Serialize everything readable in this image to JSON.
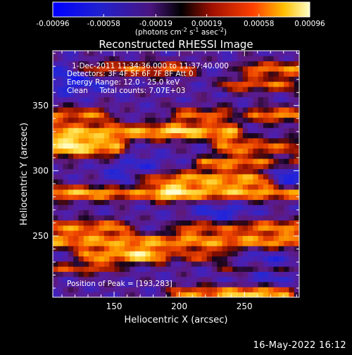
{
  "chart_data": {
    "type": "heatmap",
    "title": "Reconstructed RHESSI Image",
    "xlabel": "Heliocentric X (arcsec)",
    "ylabel": "Heliocentric Y (arcsec)",
    "xlim": [
      103,
      292
    ],
    "ylim": [
      203,
      392
    ],
    "x_ticks": [
      150,
      200,
      250
    ],
    "y_ticks": [
      250,
      300,
      350
    ],
    "x_tick_labels": [
      "150",
      "200",
      "250"
    ],
    "y_tick_labels": [
      "250",
      "300",
      "350"
    ],
    "colorbar": {
      "range": [
        -0.00096,
        0.00096
      ],
      "tick_values": [
        -0.00096,
        -0.00058,
        -0.00019,
        0.00019,
        0.00058,
        0.00096
      ],
      "tick_labels": [
        "-0.00096",
        "-0.00058",
        "-0.00019",
        "0.00019",
        "0.00058",
        "0.00096"
      ],
      "units_prefix": "(photons cm",
      "units_exp1": "-2",
      "units_mid": " s",
      "units_exp2": "-1",
      "units_mid2": " asec",
      "units_exp3": "-2",
      "units_suffix": ")"
    },
    "annotations": {
      "time_range": "1-Dec-2011 11:34:36.000 to 11:37:40.000",
      "detectors": "Detectors: 3F 4F 5F 6F 7F 8F Att 0",
      "energy": "Energy Range: 12.0 - 25.0 keV",
      "method": "Clean     Total counts: 7.07E+03",
      "peak": "Position of Peak = [193,283]"
    },
    "image_grid": {
      "nx": 48,
      "ny": 48,
      "bright_bands": [
        {
          "y": 378,
          "sigma": 4.0,
          "segments": [
            [
              130,
              160,
              0.75
            ],
            [
              175,
              205,
              0.7
            ],
            [
              255,
              292,
              0.8
            ]
          ]
        },
        {
          "y": 366,
          "sigma": 3.5,
          "segments": [
            [
              240,
              285,
              0.7
            ]
          ]
        },
        {
          "y": 343,
          "sigma": 4.0,
          "segments": [
            [
              105,
              140,
              0.75
            ],
            [
              200,
              235,
              0.7
            ],
            [
              260,
              290,
              0.85
            ]
          ]
        },
        {
          "y": 330,
          "sigma": 4.5,
          "segments": [
            [
              105,
              240,
              0.95
            ]
          ]
        },
        {
          "y": 318,
          "sigma": 5.0,
          "segments": [
            [
              105,
              150,
              1.0
            ],
            [
              235,
              290,
              0.8
            ]
          ]
        },
        {
          "y": 306,
          "sigma": 3.0,
          "segments": [
            [
              220,
              290,
              0.85
            ]
          ]
        },
        {
          "y": 294,
          "sigma": 4.5,
          "segments": [
            [
              170,
              265,
              0.95
            ]
          ]
        },
        {
          "y": 283,
          "sigma": 4.0,
          "segments": [
            [
              105,
              290,
              1.0
            ]
          ]
        },
        {
          "y": 257,
          "sigma": 4.0,
          "segments": [
            [
              105,
              155,
              0.8
            ],
            [
              205,
              290,
              0.8
            ]
          ]
        },
        {
          "y": 246,
          "sigma": 4.0,
          "segments": [
            [
              105,
              290,
              0.9
            ]
          ]
        },
        {
          "y": 235,
          "sigma": 4.0,
          "segments": [
            [
              130,
              185,
              0.9
            ],
            [
              205,
              230,
              0.6
            ]
          ]
        },
        {
          "y": 225,
          "sigma": 3.0,
          "segments": [
            [
              105,
              145,
              0.6
            ],
            [
              240,
              290,
              0.6
            ]
          ]
        },
        {
          "y": 206,
          "sigma": 4.0,
          "segments": [
            [
              200,
              280,
              0.85
            ]
          ]
        }
      ],
      "peak_blobs": [
        {
          "x": 193,
          "y": 283,
          "sx": 9,
          "sy": 5,
          "amp": 0.55
        },
        {
          "x": 118,
          "y": 320,
          "sx": 7,
          "sy": 6,
          "amp": 0.4
        },
        {
          "x": 200,
          "y": 331,
          "sx": 10,
          "sy": 3,
          "amp": 0.35
        },
        {
          "x": 170,
          "y": 236,
          "sx": 9,
          "sy": 4,
          "amp": 0.4
        },
        {
          "x": 255,
          "y": 205,
          "sx": 15,
          "sy": 4,
          "amp": 0.35
        }
      ],
      "dark_blobs": [
        {
          "x": 170,
          "y": 295,
          "sx": 16,
          "sy": 10,
          "amp": -0.55
        },
        {
          "x": 282,
          "y": 300,
          "sx": 14,
          "sy": 12,
          "amp": -0.5
        },
        {
          "x": 120,
          "y": 370,
          "sx": 18,
          "sy": 8,
          "amp": -0.45
        },
        {
          "x": 270,
          "y": 225,
          "sx": 20,
          "sy": 8,
          "amp": -0.45
        },
        {
          "x": 232,
          "y": 266,
          "sx": 16,
          "sy": 8,
          "amp": -0.4
        }
      ]
    }
  },
  "footer": {
    "timestamp": "16-May-2022 16:12"
  }
}
